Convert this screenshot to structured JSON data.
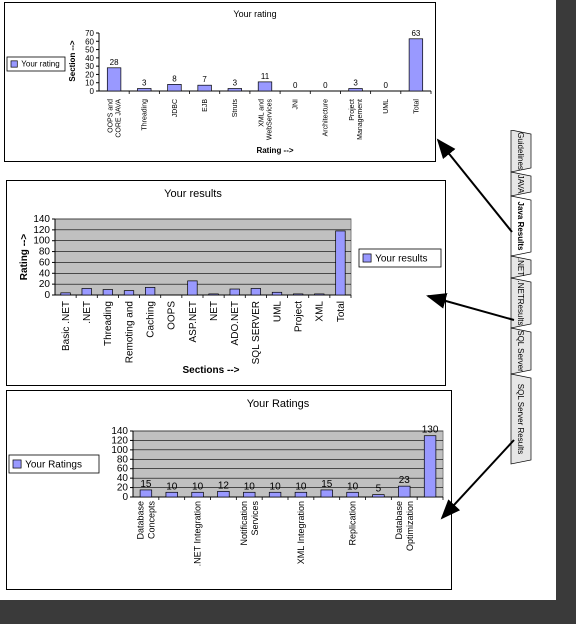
{
  "chart_data": [
    {
      "type": "bar",
      "title": "Your rating",
      "xlabel": "Rating -->",
      "ylabel": "Section -->",
      "legend": "Your rating",
      "legend_position": "left",
      "ylim": [
        0,
        70
      ],
      "yticks": [
        0,
        10,
        20,
        30,
        40,
        50,
        60,
        70
      ],
      "categories": [
        "OOPS and CORE JAVA",
        "Threading",
        "JDBC",
        "EJB",
        "Struts",
        "XML and WebServices",
        "JNI",
        "Architecture",
        "Project Management",
        "UML",
        "Total"
      ],
      "category_lines": [
        [
          "OOPS and",
          "CORE JAVA"
        ],
        [
          "Threading"
        ],
        [
          "JDBC"
        ],
        [
          "EJB"
        ],
        [
          "Struts"
        ],
        [
          "XML and",
          "WebServices"
        ],
        [
          "JNI"
        ],
        [
          "Architecture"
        ],
        [
          "Project",
          "Management"
        ],
        [
          "UML"
        ],
        [
          "Total"
        ]
      ],
      "values": [
        28,
        3,
        8,
        7,
        3,
        11,
        0,
        0,
        3,
        0,
        63
      ],
      "data_labels": true,
      "grid": false,
      "plot_background": "#ffffff",
      "bar_color": "#9999ff"
    },
    {
      "type": "bar",
      "title": "Your results",
      "xlabel": "Sections -->",
      "ylabel": "Rating -->",
      "legend": "Your results",
      "legend_position": "right",
      "ylim": [
        0,
        140
      ],
      "yticks": [
        0,
        20,
        40,
        60,
        80,
        100,
        120,
        140
      ],
      "categories": [
        "Basic .NET",
        ".NET",
        "Threading",
        "Remoting and",
        "Caching",
        "OOPS",
        "ASP.NET",
        "NET",
        "ADO.NET",
        "SQL SERVER",
        "UML",
        "Project",
        "XML",
        "Total"
      ],
      "category_lines": [
        [
          "Basic .NET"
        ],
        [
          ".NET"
        ],
        [
          "Threading"
        ],
        [
          "Remoting and"
        ],
        [
          "Caching"
        ],
        [
          "OOPS"
        ],
        [
          "ASP.NET"
        ],
        [
          "NET"
        ],
        [
          "ADO.NET"
        ],
        [
          "SQL SERVER"
        ],
        [
          "UML"
        ],
        [
          "Project"
        ],
        [
          "XML"
        ],
        [
          "Total"
        ]
      ],
      "values": [
        4,
        12,
        10,
        8,
        14,
        0,
        26,
        2,
        11,
        12,
        5,
        2,
        2,
        118
      ],
      "data_labels": false,
      "grid": true,
      "plot_background": "#c0c0c0",
      "bar_color": "#9999ff"
    },
    {
      "type": "bar",
      "title": "Your Ratings",
      "xlabel": "",
      "ylabel": "",
      "legend": "Your Ratings",
      "legend_position": "left",
      "ylim": [
        0,
        140
      ],
      "yticks": [
        0,
        20,
        40,
        60,
        80,
        100,
        120,
        140
      ],
      "categories": [
        "Database Concepts",
        ".NET Integration",
        "Notification Services",
        "XML Integration",
        "Replication",
        "Database Optimization",
        "",
        "",
        "",
        "",
        "",
        ""
      ],
      "values": [
        15,
        10,
        10,
        12,
        10,
        10,
        10,
        15,
        10,
        5,
        23,
        130
      ],
      "data_labels": true,
      "grid": true,
      "plot_background": "#c0c0c0",
      "bar_color": "#9999ff"
    }
  ],
  "category_labels_3": [
    {
      "lines": [
        "Database",
        "Concepts"
      ],
      "under": 0
    },
    {
      "lines": [
        ".NET Integration"
      ],
      "under": 2
    },
    {
      "lines": [
        "Notification",
        "Services"
      ],
      "under": 4
    },
    {
      "lines": [
        "XML Integration"
      ],
      "under": 6
    },
    {
      "lines": [
        "Replication"
      ],
      "under": 8
    },
    {
      "lines": [
        "Database",
        "Optimization"
      ],
      "under": 10
    }
  ],
  "tabs": [
    "Guidelines",
    "JAVA",
    "Java Results",
    ".NET",
    ".NETResults",
    "SQL Server",
    "SQL Server Results"
  ],
  "active_tab": "Java Results"
}
